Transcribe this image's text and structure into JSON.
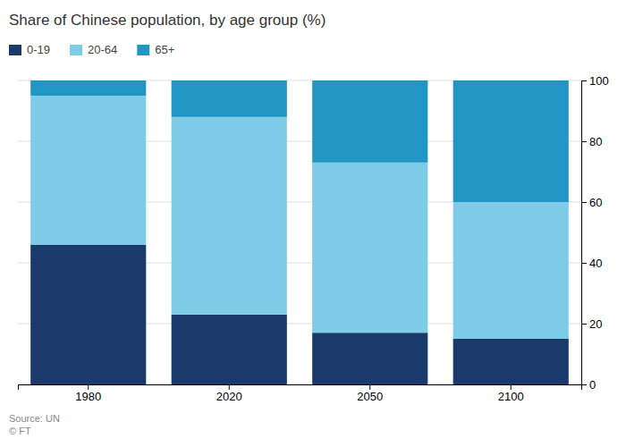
{
  "chart_data": {
    "type": "bar",
    "stacked": true,
    "title": "Share of Chinese population, by age group (%)",
    "annotations": [
      "Source: UN\n© FT"
    ],
    "categories": [
      "1980",
      "2020",
      "2050",
      "2100"
    ],
    "series": [
      {
        "name": "0-19",
        "color": "#1a3a6b",
        "values": [
          46,
          23,
          17,
          15
        ]
      },
      {
        "name": "20-64",
        "color": "#7ecce8",
        "values": [
          49,
          65,
          56,
          45
        ]
      },
      {
        "name": "65+",
        "color": "#2196c4",
        "values": [
          5,
          12,
          27,
          40
        ]
      }
    ],
    "ylim": [
      0,
      100
    ],
    "yticks": [
      0,
      20,
      40,
      60,
      80,
      100
    ],
    "grid": true,
    "legend": "upper left"
  }
}
